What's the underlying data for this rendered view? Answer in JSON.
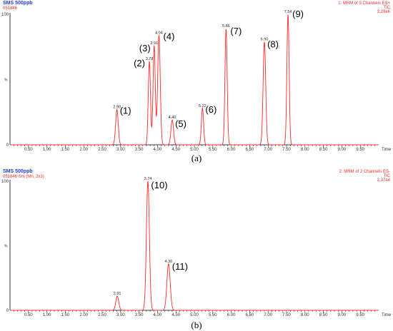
{
  "chart_data": [
    {
      "type": "line",
      "panel_label": "(a)",
      "header": {
        "title": "SMS 500ppb",
        "sample_id": "051846",
        "right_line1": "1: MRM of 9 Channels ES+",
        "right_line2": "TIC",
        "right_line3": "3.29e6"
      },
      "xlabel": "Time",
      "ylabel": "%",
      "xlim": [
        0,
        10
      ],
      "ylim": [
        0,
        100
      ],
      "x_ticks": [
        "0.50",
        "1.00",
        "1.50",
        "2.00",
        "2.50",
        "3.00",
        "3.50",
        "4.00",
        "4.50",
        "5.00",
        "5.50",
        "6.00",
        "6.50",
        "7.00",
        "7.50",
        "8.00",
        "8.50",
        "9.00",
        "9.50"
      ],
      "y_ticks": [
        "0",
        "100"
      ],
      "peaks": [
        {
          "rt": "2.90",
          "x": 2.9,
          "height": 27,
          "label": "(1)"
        },
        {
          "rt": "3.78",
          "x": 3.78,
          "height": 64,
          "label": "(2)"
        },
        {
          "rt": "3.91",
          "x": 3.91,
          "height": 76,
          "label": "(3)"
        },
        {
          "rt": "4.04",
          "x": 4.04,
          "height": 84,
          "label": "(4)"
        },
        {
          "rt": "4.40",
          "x": 4.4,
          "height": 19,
          "label": "(5)"
        },
        {
          "rt": "5.22",
          "x": 5.22,
          "height": 28,
          "label": "(6)"
        },
        {
          "rt": "5.86",
          "x": 5.86,
          "height": 89,
          "label": "(7)"
        },
        {
          "rt": "6.90",
          "x": 6.9,
          "height": 79,
          "label": "(8)"
        },
        {
          "rt": "7.54",
          "x": 7.54,
          "height": 100,
          "label": "(9)"
        }
      ]
    },
    {
      "type": "line",
      "panel_label": "(b)",
      "header": {
        "title": "SMS 500ppb",
        "sample_id": "051846 Sm (Mn, 2x3)",
        "right_line1": "2: MRM of 2 Channels ES-",
        "right_line2": "TIC",
        "right_line3": "2.37e4"
      },
      "xlabel": "Time",
      "ylabel": "%",
      "xlim": [
        0,
        10
      ],
      "ylim": [
        0,
        100
      ],
      "x_ticks": [
        "0.50",
        "1.00",
        "1.50",
        "2.00",
        "2.50",
        "3.00",
        "3.50",
        "4.00",
        "4.50",
        "5.00",
        "5.50",
        "6.00",
        "6.50",
        "7.00",
        "7.50",
        "8.00",
        "8.50",
        "9.00",
        "9.50"
      ],
      "y_ticks": [
        "0",
        "100"
      ],
      "peaks": [
        {
          "rt": "2.91",
          "x": 2.91,
          "height": 11,
          "label": ""
        },
        {
          "rt": "3.74",
          "x": 3.74,
          "height": 100,
          "label": "(10)"
        },
        {
          "rt": "4.30",
          "x": 4.3,
          "height": 36,
          "label": "(11)"
        }
      ]
    }
  ],
  "colors": {
    "trace": "#ff2a2a",
    "title": "#1f3bd6",
    "meta": "#ff2a2a",
    "axis": "#000000",
    "tick_text": "#333333"
  }
}
